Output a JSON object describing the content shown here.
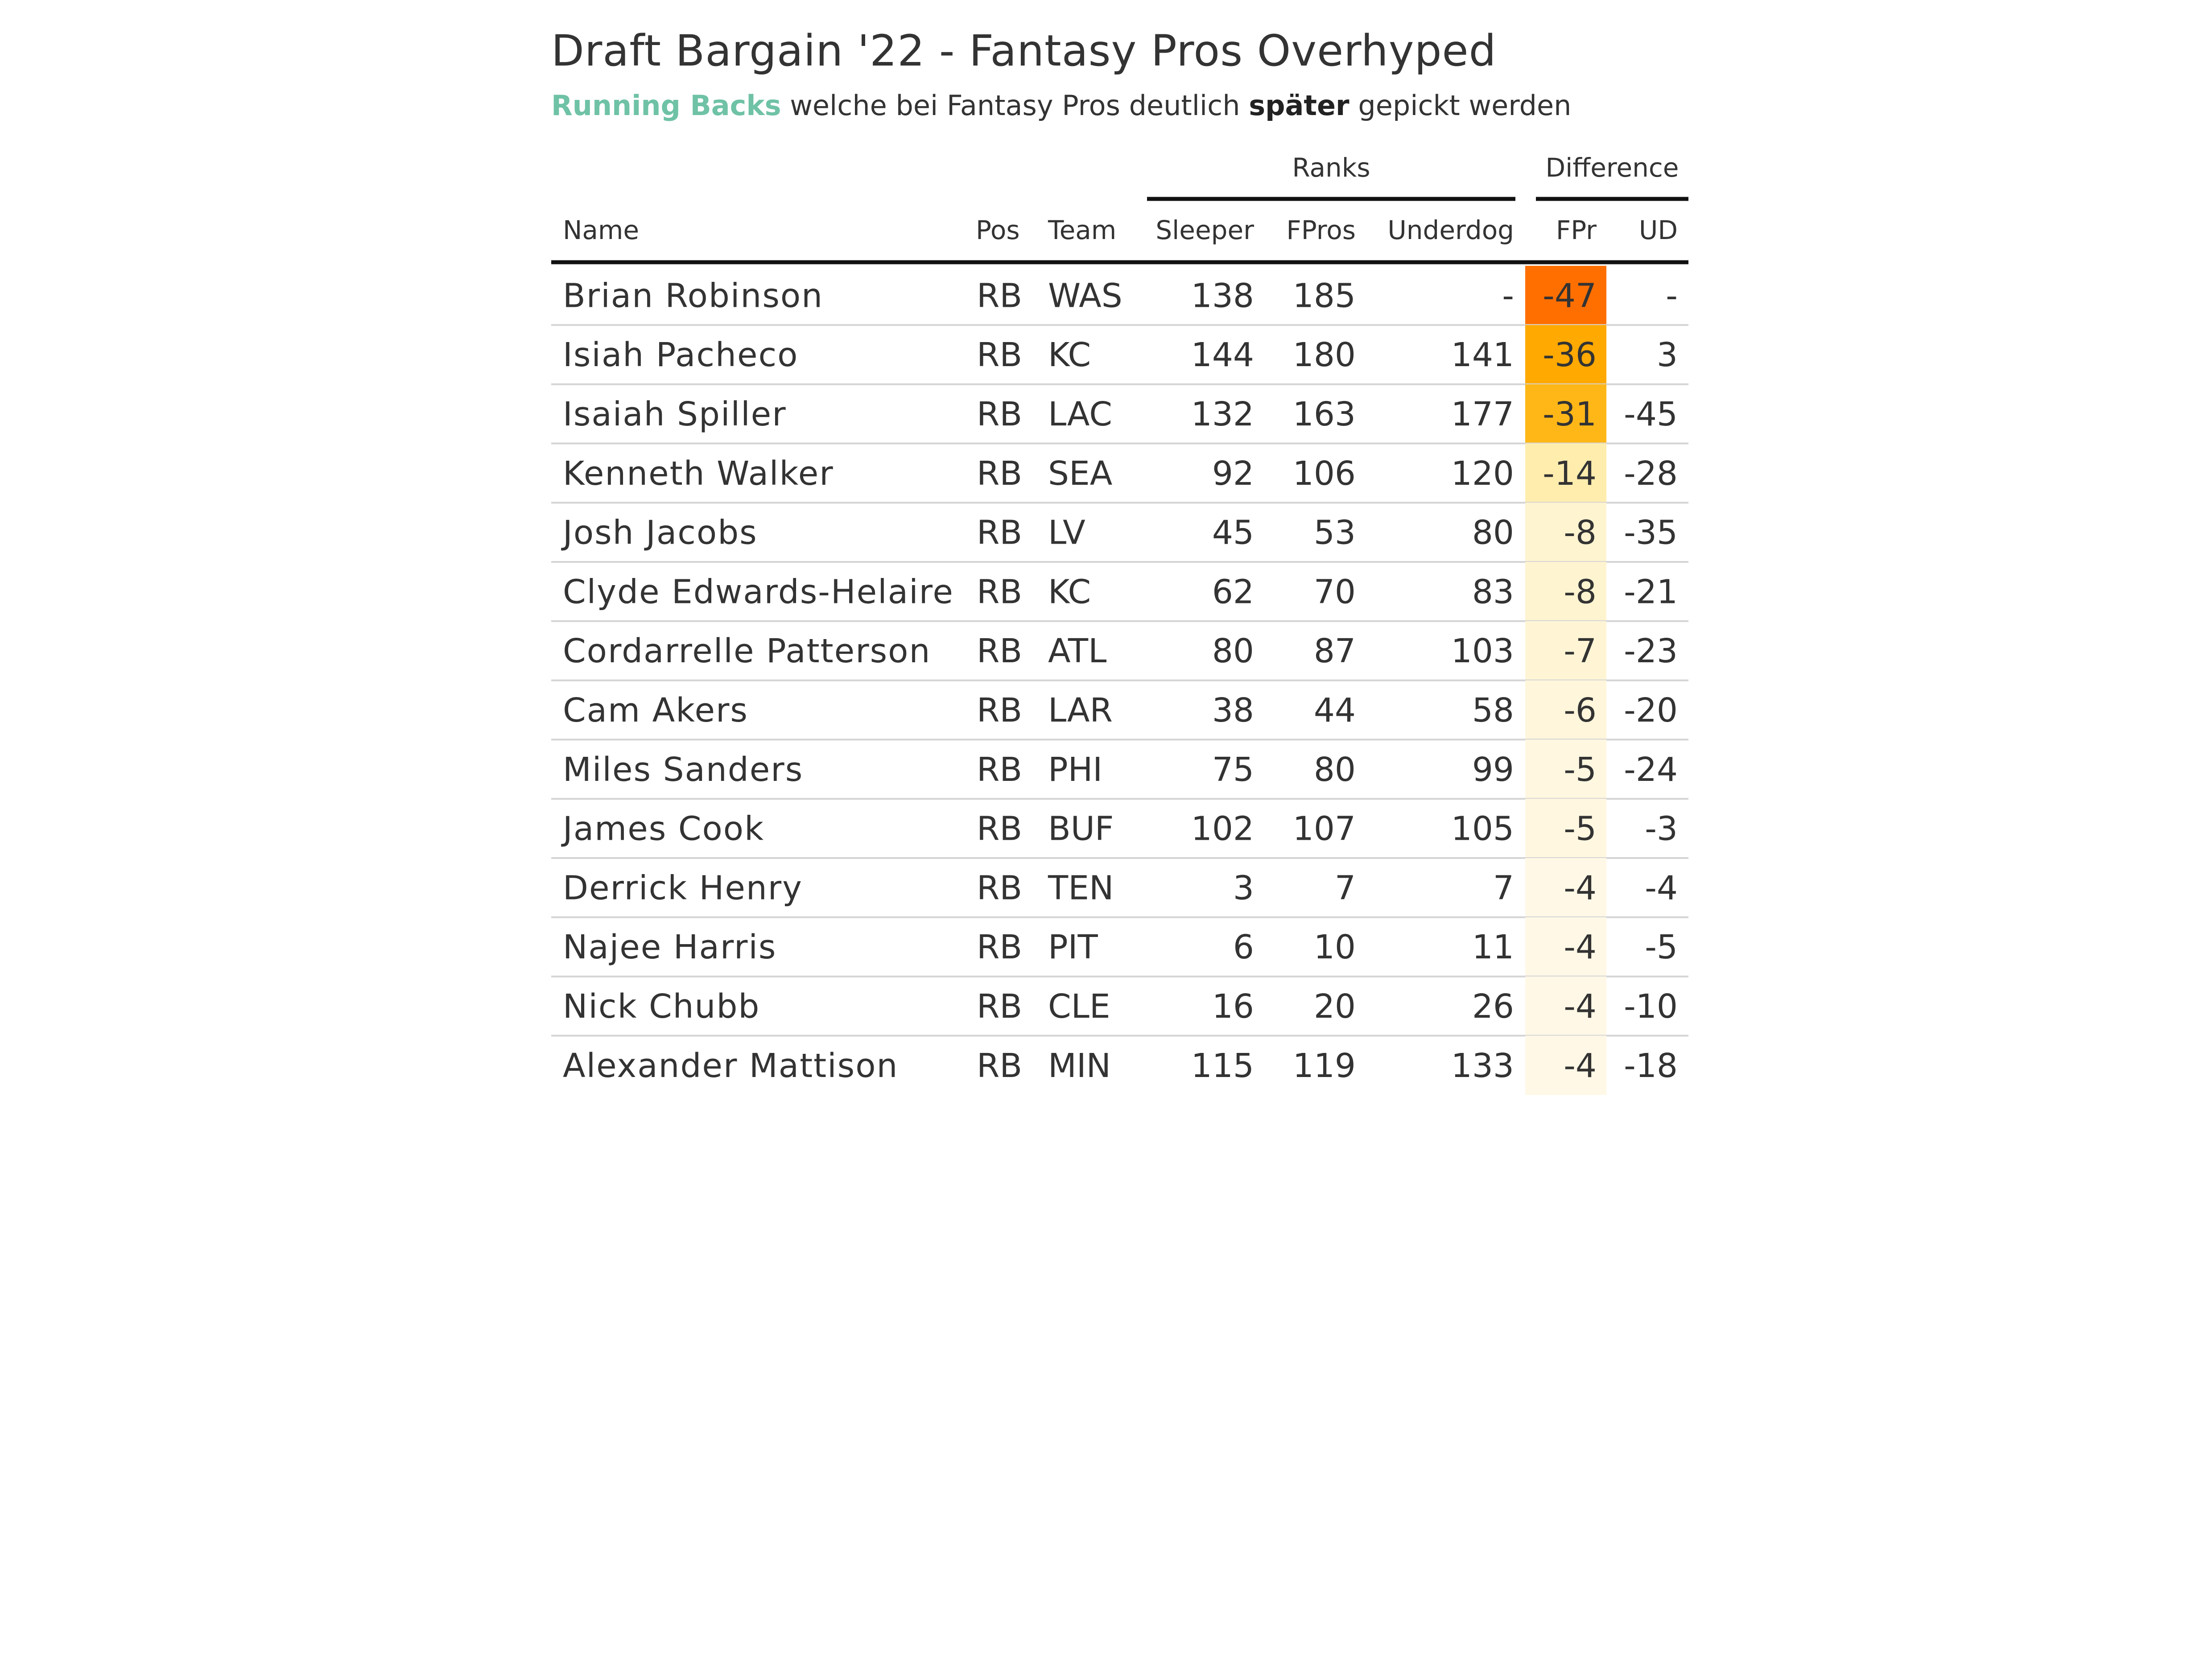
{
  "title": "Draft Bargain '22 - Fantasy Pros Overhyped",
  "subtitle": {
    "highlight": "Running Backs",
    "part1": " welche bei Fantasy Pros deutlich ",
    "bold": "später",
    "part2": " gepickt werden"
  },
  "colors": {
    "highlight": "#6fc2a5",
    "heat_max": "#ff6f00",
    "heat_min": "#fff8e6"
  },
  "chart_data": {
    "type": "table",
    "spanners": [
      {
        "label": "Ranks",
        "columns": [
          "Sleeper",
          "FPros",
          "Underdog"
        ]
      },
      {
        "label": "Difference",
        "columns": [
          "FPr",
          "UD"
        ]
      }
    ],
    "columns": [
      "Name",
      "Pos",
      "Team",
      "Sleeper",
      "FPros",
      "Underdog",
      "FPr",
      "UD"
    ],
    "rows": [
      [
        "Brian Robinson",
        "RB",
        "WAS",
        "138",
        "185",
        "-",
        "-47",
        "-"
      ],
      [
        "Isiah Pacheco",
        "RB",
        "KC",
        "144",
        "180",
        "141",
        "-36",
        "3"
      ],
      [
        "Isaiah Spiller",
        "RB",
        "LAC",
        "132",
        "163",
        "177",
        "-31",
        "-45"
      ],
      [
        "Kenneth Walker",
        "RB",
        "SEA",
        "92",
        "106",
        "120",
        "-14",
        "-28"
      ],
      [
        "Josh Jacobs",
        "RB",
        "LV",
        "45",
        "53",
        "80",
        "-8",
        "-35"
      ],
      [
        "Clyde Edwards-Helaire",
        "RB",
        "KC",
        "62",
        "70",
        "83",
        "-8",
        "-21"
      ],
      [
        "Cordarrelle Patterson",
        "RB",
        "ATL",
        "80",
        "87",
        "103",
        "-7",
        "-23"
      ],
      [
        "Cam Akers",
        "RB",
        "LAR",
        "38",
        "44",
        "58",
        "-6",
        "-20"
      ],
      [
        "Miles Sanders",
        "RB",
        "PHI",
        "75",
        "80",
        "99",
        "-5",
        "-24"
      ],
      [
        "James Cook",
        "RB",
        "BUF",
        "102",
        "107",
        "105",
        "-5",
        "-3"
      ],
      [
        "Derrick Henry",
        "RB",
        "TEN",
        "3",
        "7",
        "7",
        "-4",
        "-4"
      ],
      [
        "Najee Harris",
        "RB",
        "PIT",
        "6",
        "10",
        "11",
        "-4",
        "-5"
      ],
      [
        "Nick Chubb",
        "RB",
        "CLE",
        "16",
        "20",
        "26",
        "-4",
        "-10"
      ],
      [
        "Alexander Mattison",
        "RB",
        "MIN",
        "115",
        "119",
        "133",
        "-4",
        "-18"
      ]
    ],
    "heat_column": "FPr"
  }
}
